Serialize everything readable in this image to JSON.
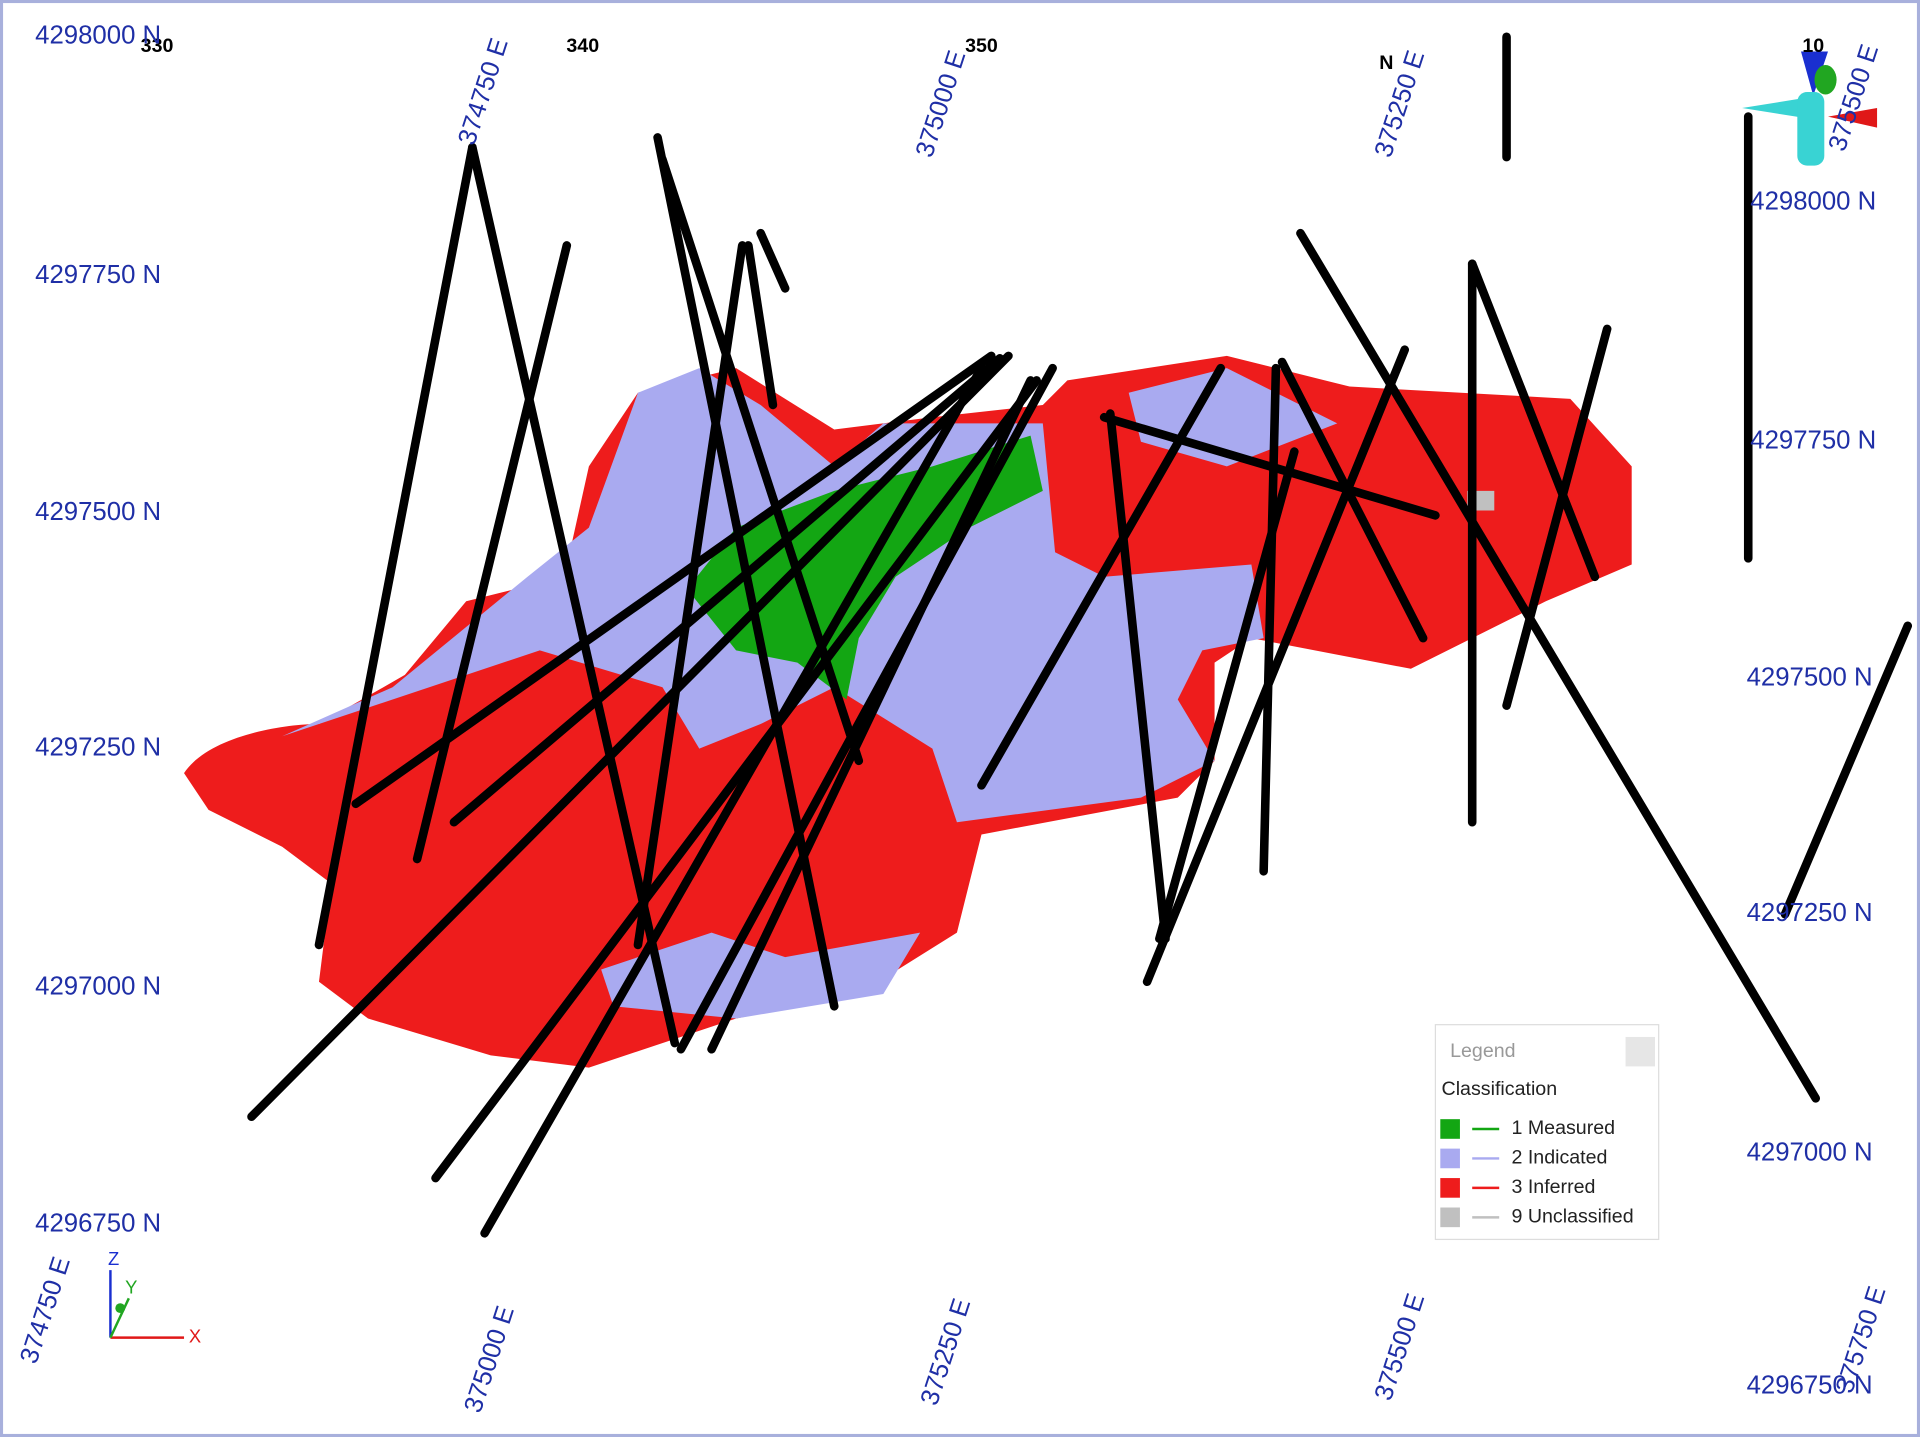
{
  "section_labels": [
    "330",
    "340",
    "350",
    "N",
    "10"
  ],
  "easting_labels_top": [
    "374750 E",
    "375000 E",
    "375250 E",
    "375500 E"
  ],
  "northing_labels_left": [
    "4298000 N",
    "4297750 N",
    "4297500 N",
    "4297250 N",
    "4297000 N",
    "4296750 N"
  ],
  "northing_labels_right": [
    "4298000 N",
    "4297750 N",
    "4297500 N",
    "4297250 N",
    "4297000 N",
    "4296750 N"
  ],
  "easting_labels_bottom": [
    "374750 E",
    "375000 E",
    "375250 E",
    "375500 E",
    "375750 E"
  ],
  "legend": {
    "title": "Legend",
    "heading": "Classification",
    "items": [
      {
        "label": "1 Measured",
        "color": "#13a613"
      },
      {
        "label": "2 Indicated",
        "color": "#a9aaf0"
      },
      {
        "label": "3 Inferred",
        "color": "#ee1c1c"
      },
      {
        "label": "9 Unclassified",
        "color": "#c0c0c0"
      }
    ]
  },
  "axis_triad": {
    "z": "Z",
    "y": "Y",
    "x": "X"
  }
}
